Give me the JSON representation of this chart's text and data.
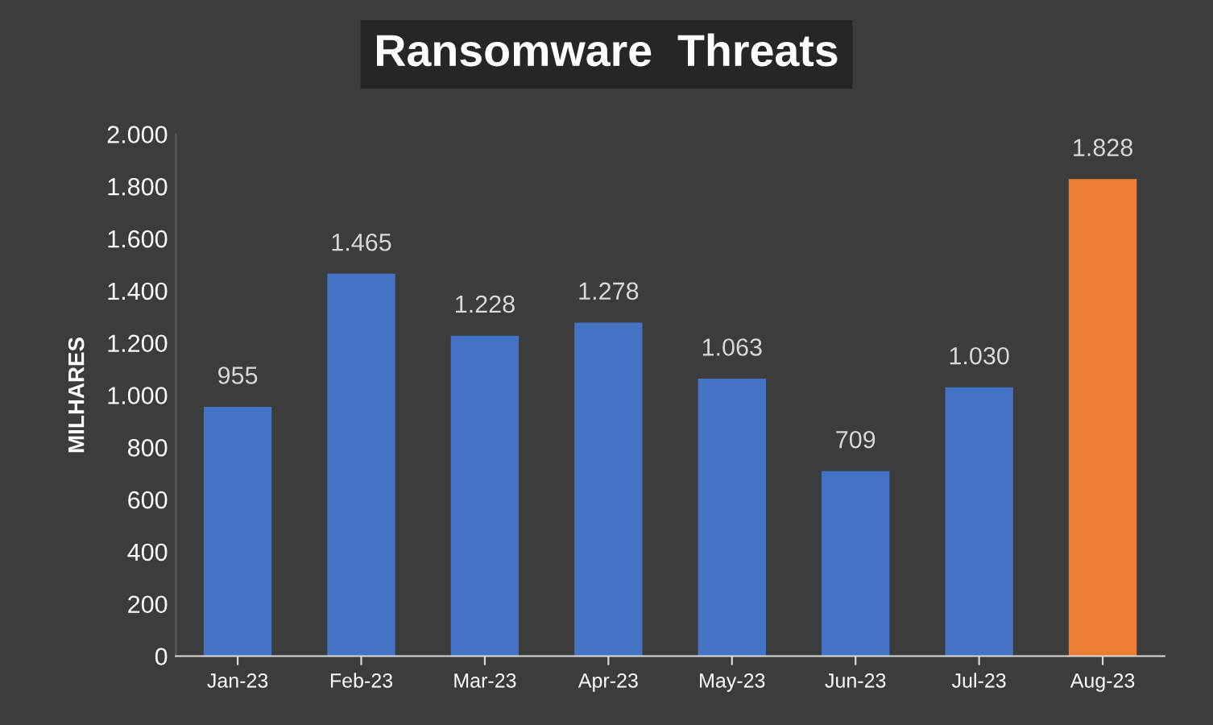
{
  "chart_data": {
    "type": "bar",
    "title": "Ransomware  Threats",
    "ylabel": "MILHARES",
    "categories": [
      "Jan-23",
      "Feb-23",
      "Mar-23",
      "Apr-23",
      "May-23",
      "Jun-23",
      "Jul-23",
      "Aug-23"
    ],
    "values": [
      955,
      1465,
      1228,
      1278,
      1063,
      709,
      1030,
      1828
    ],
    "colors": [
      "#4472c4",
      "#4472c4",
      "#4472c4",
      "#4472c4",
      "#4472c4",
      "#4472c4",
      "#4472c4",
      "#ed7d31"
    ],
    "value_labels": [
      "955",
      "1.465",
      "1.228",
      "1.278",
      "1.063",
      "709",
      "1.030",
      "1.828"
    ],
    "ylim": [
      0,
      2000
    ],
    "yticks": [
      0,
      200,
      400,
      600,
      800,
      {
        "value": 1000,
        "label": "1.000"
      },
      {
        "value": 1200,
        "label": "1.200"
      },
      {
        "value": 1400,
        "label": "1.400"
      },
      {
        "value": 1600,
        "label": "1.600"
      },
      {
        "value": 1800,
        "label": "1.800"
      },
      {
        "value": 2000,
        "label": "2.000"
      }
    ],
    "grid": false,
    "legend": false
  }
}
